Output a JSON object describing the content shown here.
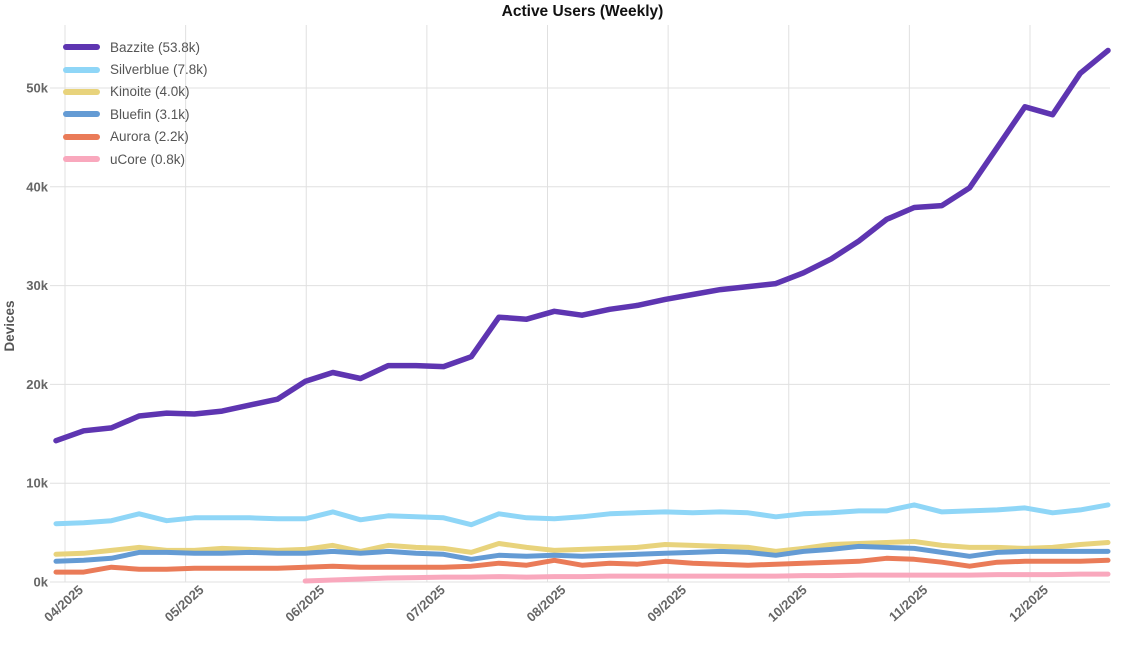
{
  "chart_data": {
    "type": "line",
    "title": "Active Users (Weekly)",
    "ylabel": "Devices",
    "x_unit": "week",
    "grid": true,
    "legend_position": "top-left",
    "x_tick_labels": [
      "04/2025",
      "05/2025",
      "06/2025",
      "07/2025",
      "08/2025",
      "09/2025",
      "10/2025",
      "11/2025",
      "12/2025"
    ],
    "y_ticks": [
      {
        "value": 0,
        "label": "0k"
      },
      {
        "value": 10,
        "label": "10k"
      },
      {
        "value": 20,
        "label": "20k"
      },
      {
        "value": 30,
        "label": "30k"
      },
      {
        "value": 40,
        "label": "40k"
      },
      {
        "value": 50,
        "label": "50k"
      }
    ],
    "ylim_thousands": [
      0,
      56
    ],
    "values_unit": "thousands of devices",
    "series": [
      {
        "name": "Bazzite",
        "legend_label": "Bazzite (53.8k)",
        "color": "#5e35b1",
        "values": [
          14.3,
          15.3,
          15.6,
          16.8,
          17.1,
          17.0,
          17.3,
          17.9,
          18.5,
          20.3,
          21.2,
          20.6,
          21.9,
          21.9,
          21.8,
          22.8,
          26.8,
          26.6,
          27.4,
          27.0,
          27.6,
          28.0,
          28.6,
          29.1,
          29.6,
          29.9,
          30.2,
          31.3,
          32.7,
          34.5,
          36.7,
          37.9,
          38.1,
          39.9,
          44.0,
          48.1,
          47.3,
          51.5,
          53.8
        ]
      },
      {
        "name": "Silverblue",
        "legend_label": "Silverblue (7.8k)",
        "color": "#8fd6f7",
        "values": [
          5.9,
          6.0,
          6.2,
          6.9,
          6.2,
          6.5,
          6.5,
          6.5,
          6.4,
          6.4,
          7.1,
          6.3,
          6.7,
          6.6,
          6.5,
          5.8,
          6.9,
          6.5,
          6.4,
          6.6,
          6.9,
          7.0,
          7.1,
          7.0,
          7.1,
          7.0,
          6.6,
          6.9,
          7.0,
          7.2,
          7.2,
          7.8,
          7.1,
          7.2,
          7.3,
          7.5,
          7.0,
          7.3,
          7.8
        ]
      },
      {
        "name": "Kinoite",
        "legend_label": "Kinoite (4.0k)",
        "color": "#e8d37c",
        "values": [
          2.8,
          2.9,
          3.2,
          3.5,
          3.2,
          3.2,
          3.4,
          3.3,
          3.2,
          3.3,
          3.7,
          3.1,
          3.7,
          3.5,
          3.4,
          3.0,
          3.9,
          3.5,
          3.2,
          3.3,
          3.4,
          3.5,
          3.8,
          3.7,
          3.6,
          3.5,
          3.1,
          3.4,
          3.8,
          3.9,
          4.0,
          4.1,
          3.7,
          3.5,
          3.5,
          3.4,
          3.5,
          3.8,
          4.0
        ]
      },
      {
        "name": "Bluefin",
        "legend_label": "Bluefin (3.1k)",
        "color": "#649bd4",
        "values": [
          2.1,
          2.2,
          2.4,
          3.0,
          3.0,
          2.9,
          2.9,
          3.0,
          2.9,
          2.9,
          3.1,
          2.9,
          3.1,
          2.9,
          2.8,
          2.3,
          2.7,
          2.6,
          2.7,
          2.6,
          2.7,
          2.8,
          2.9,
          3.0,
          3.1,
          3.0,
          2.7,
          3.1,
          3.3,
          3.6,
          3.5,
          3.4,
          3.0,
          2.6,
          3.0,
          3.1,
          3.1,
          3.1,
          3.1
        ]
      },
      {
        "name": "Aurora",
        "legend_label": "Aurora (2.2k)",
        "color": "#ea7b58",
        "values": [
          1.0,
          1.0,
          1.5,
          1.3,
          1.3,
          1.4,
          1.4,
          1.4,
          1.4,
          1.5,
          1.6,
          1.5,
          1.5,
          1.5,
          1.5,
          1.6,
          1.9,
          1.7,
          2.2,
          1.7,
          1.9,
          1.8,
          2.1,
          1.9,
          1.8,
          1.7,
          1.8,
          1.9,
          2.0,
          2.1,
          2.4,
          2.3,
          2.0,
          1.6,
          2.0,
          2.1,
          2.1,
          2.1,
          2.2
        ]
      },
      {
        "name": "uCore",
        "legend_label": "uCore (0.8k)",
        "color": "#f9a8bd",
        "values": [
          null,
          null,
          null,
          null,
          null,
          null,
          null,
          null,
          null,
          0.1,
          0.2,
          0.3,
          0.4,
          0.45,
          0.5,
          0.5,
          0.55,
          0.5,
          0.55,
          0.55,
          0.6,
          0.6,
          0.6,
          0.6,
          0.6,
          0.6,
          0.6,
          0.65,
          0.65,
          0.7,
          0.7,
          0.7,
          0.7,
          0.7,
          0.75,
          0.75,
          0.75,
          0.8,
          0.8
        ]
      }
    ]
  },
  "colors": {
    "background": "#ffffff",
    "gridline": "#e0e0e0",
    "axis_text": "#666666",
    "legend_text": "#555555",
    "title_text": "#111111"
  }
}
